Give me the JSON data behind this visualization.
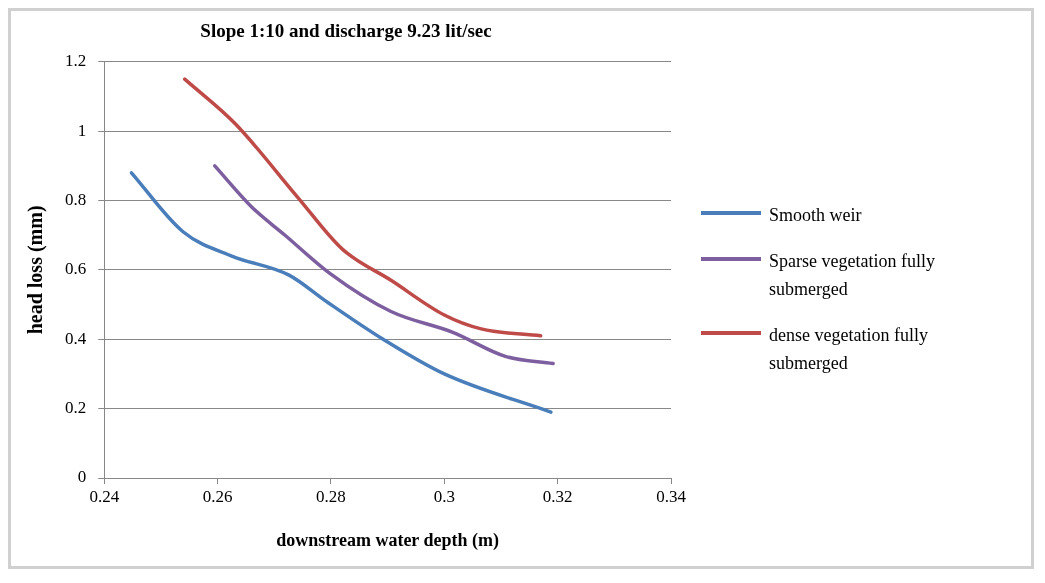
{
  "chart_data": {
    "type": "line",
    "title": "Slope 1:10 and discharge 9.23 lit/sec",
    "xlabel": "downstream water depth (m)",
    "ylabel": "head loss (mm)",
    "xlim": [
      0.24,
      0.34
    ],
    "xticks": [
      0.24,
      0.26,
      0.28,
      0.3,
      0.32,
      0.34
    ],
    "ylim": [
      0,
      1.2
    ],
    "yticks": [
      0,
      0.2,
      0.4,
      0.6,
      0.8,
      1,
      1.2
    ],
    "grid": "y",
    "legend": "right",
    "marker": "none",
    "series": [
      {
        "name": "Smooth weir",
        "color": "#4a7ebb",
        "x": [
          0.2448,
          0.2539,
          0.2625,
          0.2726,
          0.2791,
          0.2892,
          0.3,
          0.3188
        ],
        "values": [
          0.88,
          0.71,
          0.64,
          0.585,
          0.51,
          0.4,
          0.3,
          0.19
        ]
      },
      {
        "name": "Sparse vegetation fully submerged",
        "color": "#7d5fa0",
        "x": [
          0.2595,
          0.2661,
          0.2719,
          0.2798,
          0.2906,
          0.3015,
          0.3109,
          0.3192
        ],
        "values": [
          0.9,
          0.78,
          0.7,
          0.59,
          0.48,
          0.42,
          0.35,
          0.33
        ]
      },
      {
        "name": "dense vegetation fully submerged",
        "color": "#be4b48",
        "x": [
          0.2542,
          0.2632,
          0.2741,
          0.282,
          0.2906,
          0.3,
          0.3065,
          0.317
        ],
        "values": [
          1.15,
          1.02,
          0.81,
          0.66,
          0.57,
          0.47,
          0.43,
          0.41
        ]
      }
    ]
  }
}
